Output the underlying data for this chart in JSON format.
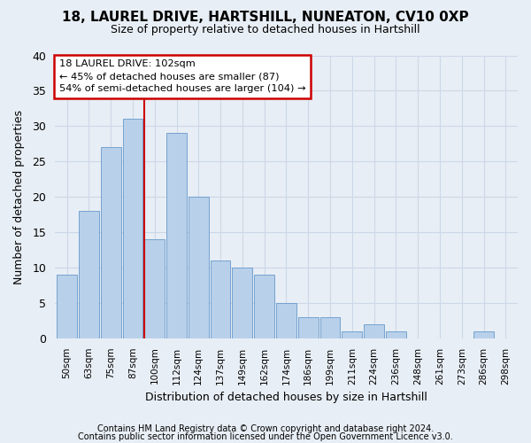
{
  "title1": "18, LAUREL DRIVE, HARTSHILL, NUNEATON, CV10 0XP",
  "title2": "Size of property relative to detached houses in Hartshill",
  "xlabel": "Distribution of detached houses by size in Hartshill",
  "ylabel": "Number of detached properties",
  "categories": [
    "50sqm",
    "63sqm",
    "75sqm",
    "87sqm",
    "100sqm",
    "112sqm",
    "124sqm",
    "137sqm",
    "149sqm",
    "162sqm",
    "174sqm",
    "186sqm",
    "199sqm",
    "211sqm",
    "224sqm",
    "236sqm",
    "248sqm",
    "261sqm",
    "273sqm",
    "286sqm",
    "298sqm"
  ],
  "values": [
    9,
    18,
    27,
    31,
    14,
    29,
    20,
    11,
    10,
    9,
    5,
    3,
    3,
    1,
    2,
    1,
    0,
    0,
    0,
    1,
    0
  ],
  "bar_color": "#b8d0ea",
  "bar_edge_color": "#6699cc",
  "annotation_line1": "18 LAUREL DRIVE: 102sqm",
  "annotation_line2": "← 45% of detached houses are smaller (87)",
  "annotation_line3": "54% of semi-detached houses are larger (104) →",
  "annotation_box_color": "#ffffff",
  "annotation_box_edge_color": "#cc0000",
  "vline_color": "#cc0000",
  "footer1": "Contains HM Land Registry data © Crown copyright and database right 2024.",
  "footer2": "Contains public sector information licensed under the Open Government Licence v3.0.",
  "ylim": [
    0,
    40
  ],
  "yticks": [
    0,
    5,
    10,
    15,
    20,
    25,
    30,
    35,
    40
  ],
  "grid_color": "#ccd8e8",
  "bg_color": "#e8eef5",
  "vline_index": 4,
  "title1_fontsize": 11,
  "title2_fontsize": 9,
  "footer_fontsize": 7
}
